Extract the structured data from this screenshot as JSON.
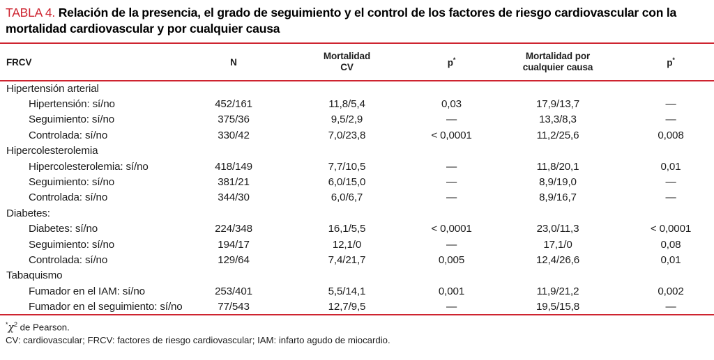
{
  "title": {
    "tag": "TABLA 4.",
    "text": "Relación de la presencia, el grado de seguimiento y el control de los factores de riesgo cardiovascular con la mortalidad cardiovascular y por cualquier causa"
  },
  "colors": {
    "accent_red": "#ce2430",
    "body_text": "#1c1c1c"
  },
  "table": {
    "columns": [
      {
        "label": "FRCV"
      },
      {
        "label": "N"
      },
      {
        "label": "Mortalidad\nCV"
      },
      {
        "label": "p",
        "sup": "*"
      },
      {
        "label": "Mortalidad por\ncualquier causa"
      },
      {
        "label": "p",
        "sup": "*"
      }
    ],
    "sections": [
      {
        "header": "Hipertensión arterial",
        "rows": [
          {
            "label": "Hipertensión: sí/no",
            "values": [
              "452/161",
              "11,8/5,4",
              "0,03",
              "17,9/13,7",
              "—"
            ]
          },
          {
            "label": "Seguimiento: sí/no",
            "values": [
              "375/36",
              "9,5/2,9",
              "—",
              "13,3/8,3",
              "—"
            ]
          },
          {
            "label": "Controlada: sí/no",
            "values": [
              "330/42",
              "7,0/23,8",
              "< 0,0001",
              "11,2/25,6",
              "0,008"
            ]
          }
        ]
      },
      {
        "header": "Hipercolesterolemia",
        "rows": [
          {
            "label": "Hipercolesterolemia: sí/no",
            "values": [
              "418/149",
              "7,7/10,5",
              "—",
              "11,8/20,1",
              "0,01"
            ]
          },
          {
            "label": "Seguimiento: sí/no",
            "values": [
              "381/21",
              "6,0/15,0",
              "—",
              "8,9/19,0",
              "—"
            ]
          },
          {
            "label": "Controlada: sí/no",
            "values": [
              "344/30",
              "6,0/6,7",
              "—",
              "8,9/16,7",
              "—"
            ]
          }
        ]
      },
      {
        "header": "Diabetes:",
        "rows": [
          {
            "label": "Diabetes: sí/no",
            "values": [
              "224/348",
              "16,1/5,5",
              "< 0,0001",
              "23,0/11,3",
              "< 0,0001"
            ]
          },
          {
            "label": "Seguimiento: sí/no",
            "values": [
              "194/17",
              "12,1/0",
              "—",
              "17,1/0",
              "0,08"
            ]
          },
          {
            "label": "Controlada: sí/no",
            "values": [
              "129/64",
              "7,4/21,7",
              "0,005",
              "12,4/26,6",
              "0,01"
            ]
          }
        ]
      },
      {
        "header": "Tabaquismo",
        "rows": [
          {
            "label": "Fumador en el IAM: sí/no",
            "values": [
              "253/401",
              "5,5/14,1",
              "0,001",
              "11,9/21,2",
              "0,002"
            ]
          },
          {
            "label": "Fumador en el seguimiento: sí/no",
            "values": [
              "77/543",
              "12,7/9,5",
              "—",
              "19,5/15,8",
              "—"
            ]
          }
        ]
      }
    ]
  },
  "footnotes": {
    "pearson": {
      "star": "*",
      "chi": "χ",
      "exp": "2",
      "rest": " de Pearson."
    },
    "abbreviations": "CV: cardiovascular; FRCV: factores de riesgo cardiovascular; IAM: infarto agudo de miocardio."
  }
}
